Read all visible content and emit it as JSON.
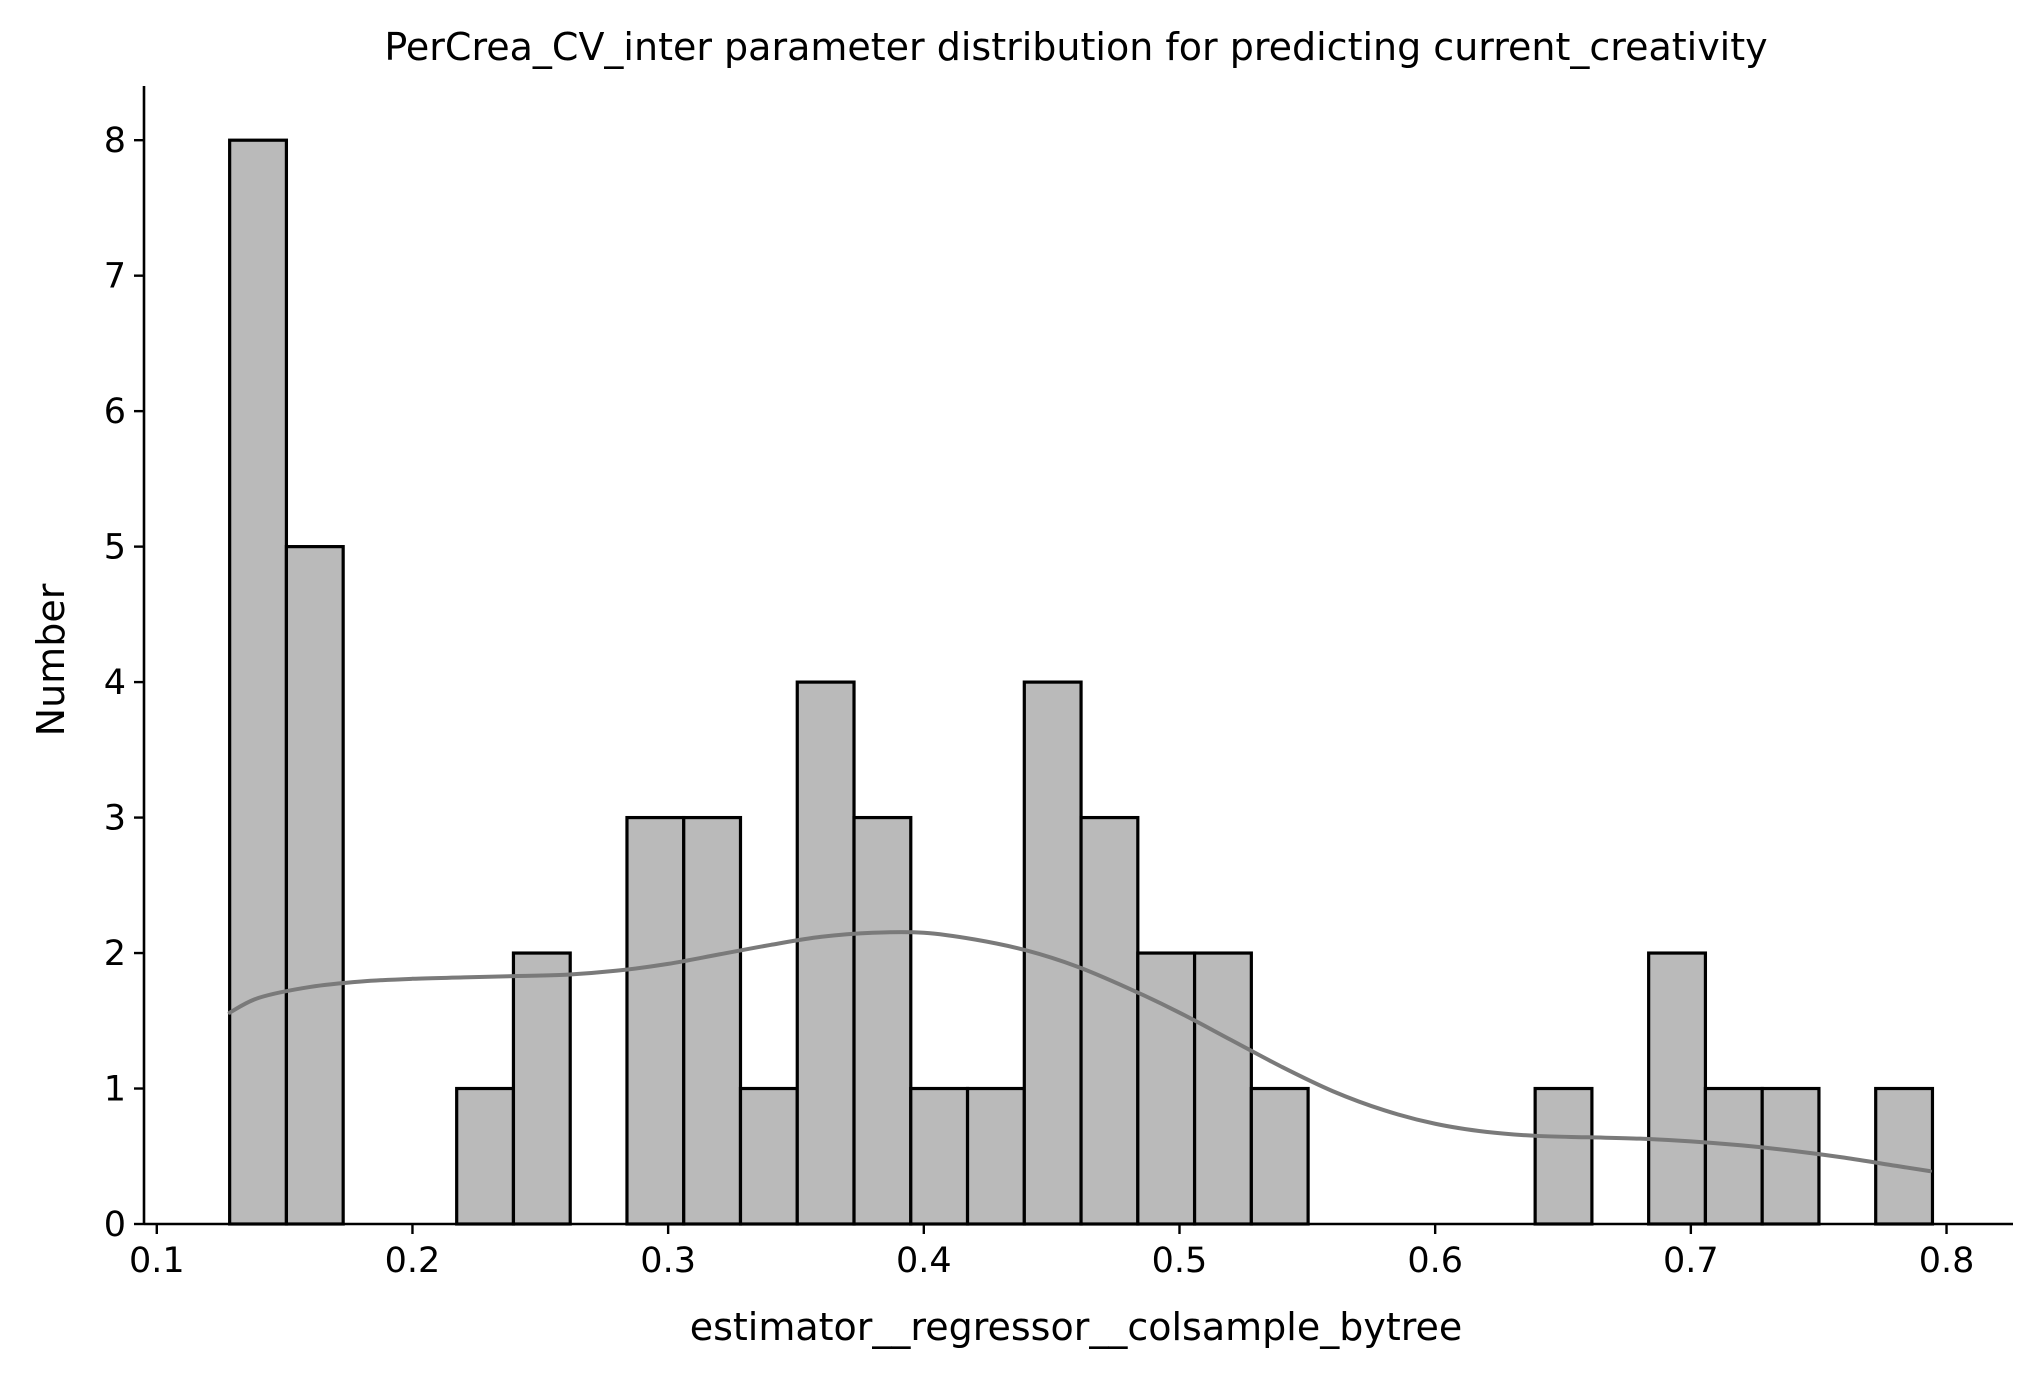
{
  "chart_data": {
    "type": "bar",
    "title": "PerCrea_CV_inter parameter distribution for predicting current_creativity",
    "xlabel": "estimator__regressor__colsample_bytree",
    "ylabel": "Number",
    "xlim": [
      0.095,
      0.826
    ],
    "ylim": [
      0,
      8.4
    ],
    "x_ticks": [
      "0.1",
      "0.2",
      "0.3",
      "0.4",
      "0.5",
      "0.6",
      "0.7",
      "0.8"
    ],
    "y_ticks": [
      "0",
      "1",
      "2",
      "3",
      "4",
      "5",
      "6",
      "7",
      "8"
    ],
    "bin_start": 0.1285,
    "bin_width": 0.0222,
    "counts": [
      8,
      5,
      0,
      0,
      1,
      2,
      0,
      3,
      3,
      1,
      4,
      3,
      1,
      1,
      4,
      3,
      2,
      2,
      1,
      0,
      0,
      0,
      0,
      1,
      0,
      2,
      1,
      1,
      0,
      1
    ],
    "kde": {
      "x": [
        0.1285,
        0.14,
        0.16,
        0.18,
        0.2,
        0.22,
        0.24,
        0.26,
        0.28,
        0.3,
        0.32,
        0.34,
        0.36,
        0.38,
        0.4,
        0.42,
        0.44,
        0.46,
        0.48,
        0.5,
        0.52,
        0.54,
        0.56,
        0.58,
        0.6,
        0.62,
        0.64,
        0.66,
        0.68,
        0.7,
        0.72,
        0.74,
        0.76,
        0.78,
        0.7935
      ],
      "y": [
        1.56,
        1.67,
        1.75,
        1.79,
        1.81,
        1.82,
        1.83,
        1.84,
        1.87,
        1.92,
        1.99,
        2.06,
        2.12,
        2.15,
        2.15,
        2.1,
        2.02,
        1.9,
        1.74,
        1.56,
        1.36,
        1.16,
        0.98,
        0.84,
        0.74,
        0.68,
        0.65,
        0.64,
        0.63,
        0.61,
        0.58,
        0.54,
        0.49,
        0.43,
        0.39
      ]
    },
    "colors": {
      "bar_fill": "#bababa",
      "bar_edge": "#000000",
      "kde_line": "#7a7a7a"
    },
    "grid": false,
    "legend": "none"
  }
}
